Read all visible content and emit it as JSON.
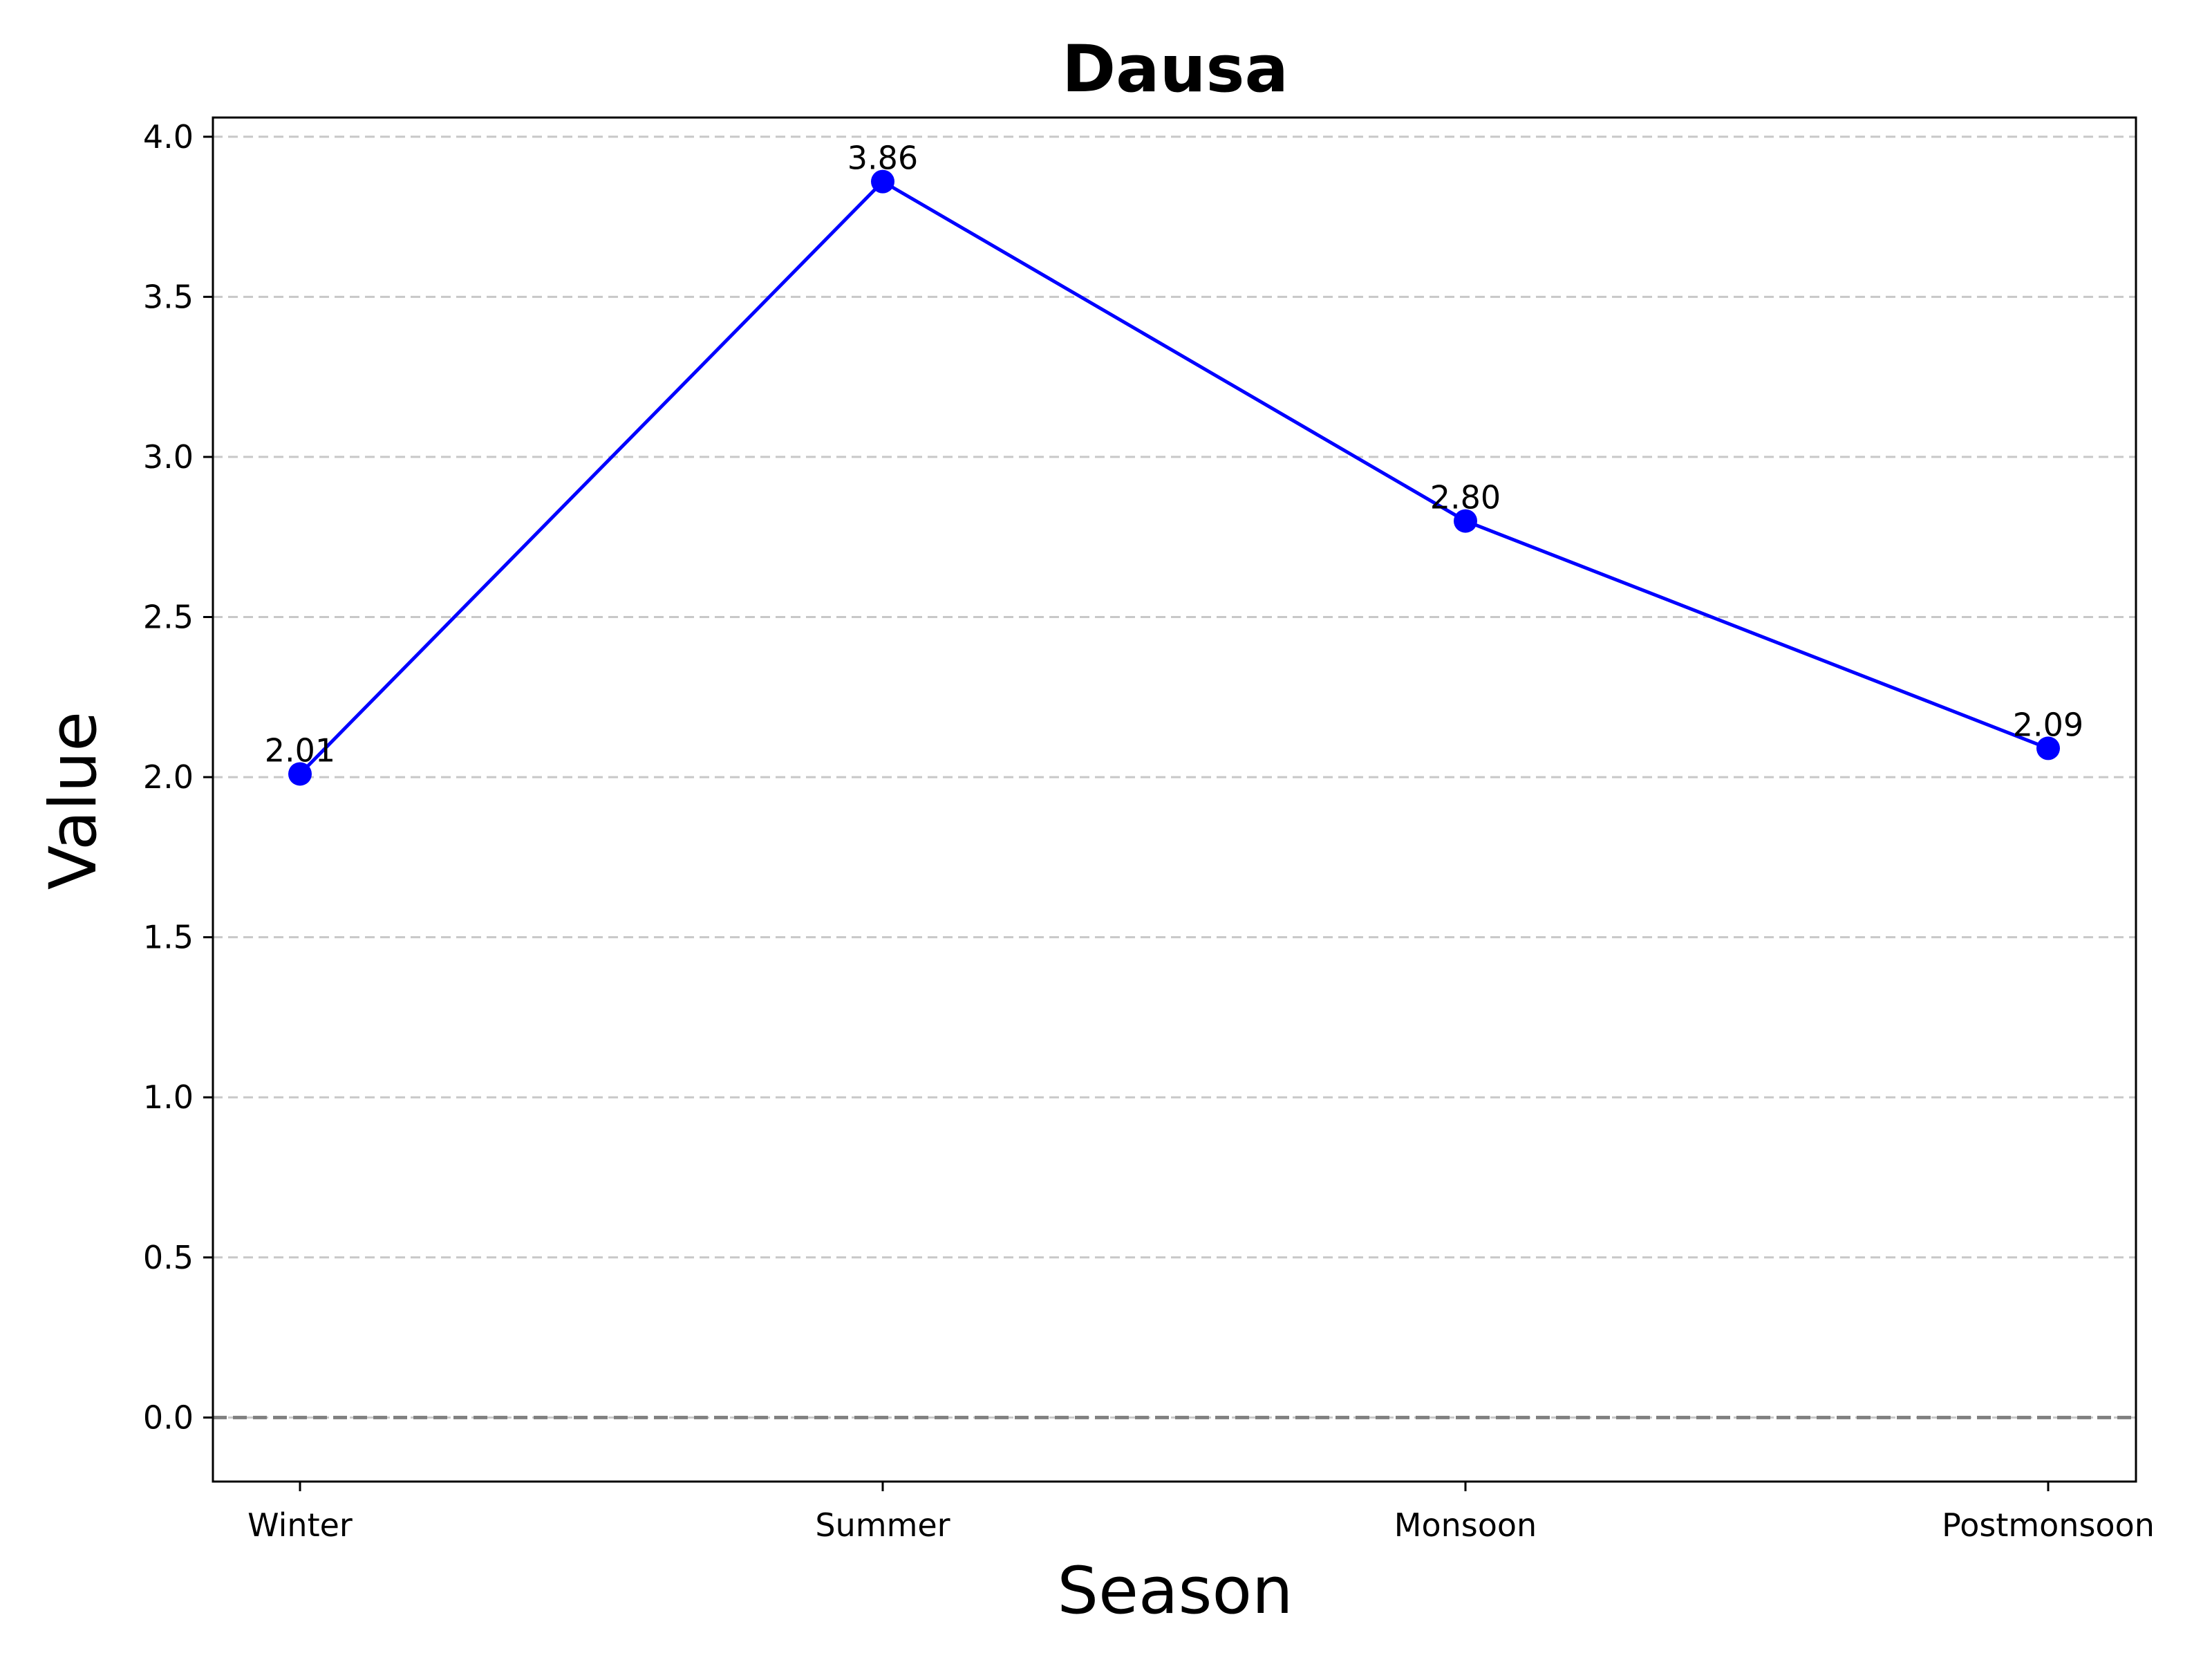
{
  "chart_data": {
    "type": "line",
    "title": "Dausa",
    "xlabel": "Season",
    "ylabel": "Value",
    "categories": [
      "Winter",
      "Summer",
      "Monsoon",
      "Postmonsoon"
    ],
    "series": [
      {
        "values": [
          2.01,
          3.86,
          2.8,
          2.09
        ],
        "value_labels": [
          "2.01",
          "3.86",
          "2.80",
          "2.09"
        ],
        "color": "#0000ff",
        "marker": "circle"
      }
    ],
    "ylim": [
      -0.2,
      4.06
    ],
    "yticks": [
      0.0,
      0.5,
      1.0,
      1.5,
      2.0,
      2.5,
      3.0,
      3.5,
      4.0
    ],
    "ytick_labels": [
      "0.0",
      "0.5",
      "1.0",
      "1.5",
      "2.0",
      "2.5",
      "3.0",
      "3.5",
      "4.0"
    ],
    "grid": "horizontal-dashed",
    "grid_color": "#c8c8c8",
    "reference_line": {
      "y": 0,
      "style": "dashed",
      "color": "#808080"
    }
  }
}
